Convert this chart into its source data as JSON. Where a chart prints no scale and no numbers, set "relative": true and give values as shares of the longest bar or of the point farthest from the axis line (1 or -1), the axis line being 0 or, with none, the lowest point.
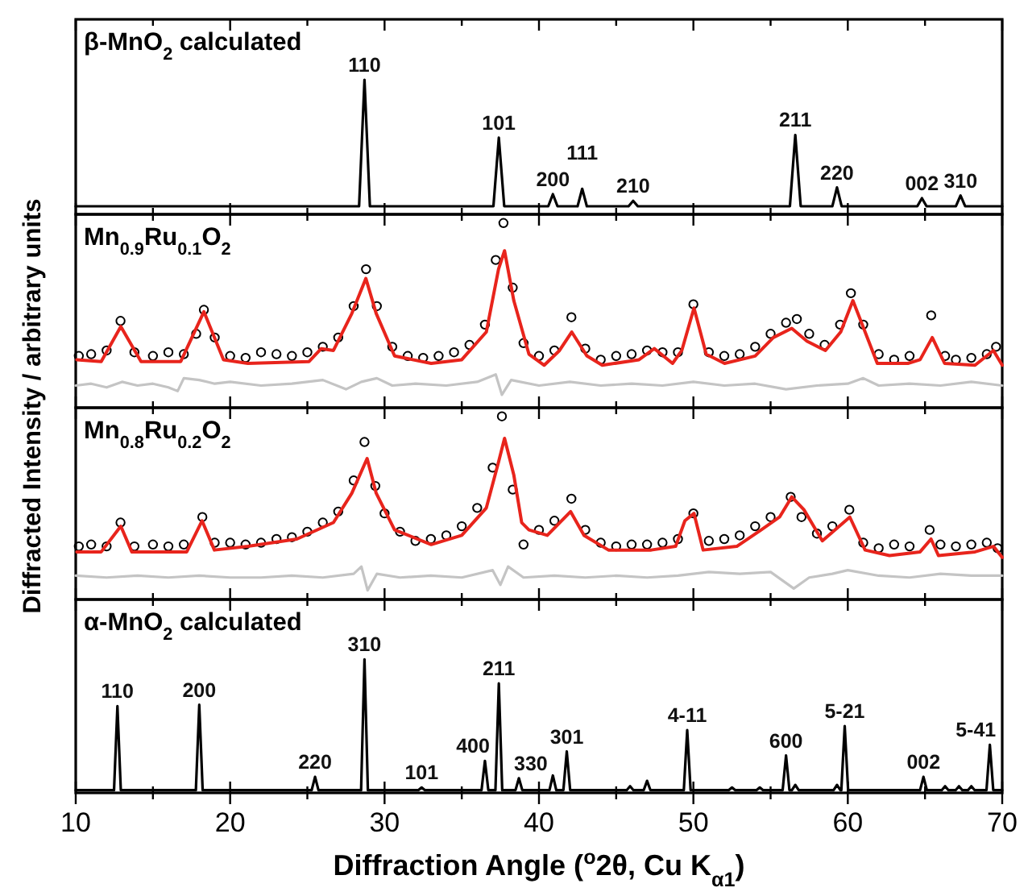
{
  "chart_data": [
    {
      "type": "line",
      "relative": true,
      "title": "β-MnO$_{2}$ calculated",
      "ylabel": "Diffracted Intensity / arbitrary units",
      "xlim": [
        10,
        70
      ],
      "xticks": [
        10,
        {
          "value": 15,
          "label": null
        },
        20,
        {
          "value": 25,
          "label": null
        },
        30,
        {
          "value": 35,
          "label": null
        },
        40,
        {
          "value": 45,
          "label": null
        },
        50,
        {
          "value": 55,
          "label": null
        },
        60,
        {
          "value": 65,
          "label": null
        },
        70
      ],
      "tick_labels": false,
      "series": [
        {
          "color": "#000000",
          "x": [
            10,
            28.35,
            28.7,
            29.05,
            37.05,
            37.4,
            37.75,
            40.6,
            40.9,
            41.2,
            42.5,
            42.8,
            43.1,
            45.8,
            46.1,
            46.4,
            56.25,
            56.6,
            56.95,
            59.0,
            59.3,
            59.6,
            64.5,
            64.8,
            65.1,
            67.0,
            67.3,
            67.6,
            70
          ],
          "values": [
            0.06,
            0.06,
            1,
            0.06,
            0.06,
            0.57,
            0.06,
            0.06,
            0.15,
            0.06,
            0.06,
            0.19,
            0.06,
            0.06,
            0.1,
            0.06,
            0.06,
            0.59,
            0.06,
            0.06,
            0.2,
            0.06,
            0.06,
            0.12,
            0.06,
            0.06,
            0.14,
            0.06,
            0.06
          ]
        }
      ],
      "annotations": [
        {
          "text": "110",
          "x": 28.7,
          "y": 1
        },
        {
          "text": "101",
          "x": 37.4,
          "y": 0.57
        },
        {
          "text": "200",
          "x": 40.9,
          "y": 0.15
        },
        {
          "text": "111",
          "x": 42.8,
          "y": 0.19
        },
        {
          "text": "210",
          "x": 46.1,
          "y": 0.1
        },
        {
          "text": "211",
          "x": 56.6,
          "y": 0.59
        },
        {
          "text": "220",
          "x": 59.3,
          "y": 0.2
        },
        {
          "text": "002",
          "x": 64.8,
          "y": 0.12
        },
        {
          "text": "310",
          "x": 67.3,
          "y": 0.14
        }
      ]
    },
    {
      "type": "line",
      "relative": true,
      "title": "Mn$_{0.9}$Ru$_{0.1}$O$_{2}$",
      "xlim": [
        10,
        70
      ],
      "xticks": [
        10,
        {
          "value": 15,
          "label": null
        },
        20,
        {
          "value": 25,
          "label": null
        },
        30,
        {
          "value": 35,
          "label": null
        },
        40,
        {
          "value": 45,
          "label": null
        },
        50,
        {
          "value": 55,
          "label": null
        },
        60,
        {
          "value": 65,
          "label": null
        },
        70
      ],
      "tick_labels": false,
      "series": [
        {
          "type": "line",
          "color": "#c4c4c4",
          "x": [
            10,
            11,
            12,
            13,
            14,
            15,
            16,
            16.6,
            17,
            18,
            19,
            20,
            22,
            24,
            26,
            27.5,
            28.5,
            29.5,
            30.5,
            32,
            34,
            36,
            37.2,
            37.6,
            38.2,
            40,
            42,
            44,
            46,
            48,
            50,
            52,
            54,
            56,
            58,
            60,
            61,
            62,
            64,
            66,
            68,
            70
          ],
          "values": [
            0.12,
            0.13,
            0.11,
            0.14,
            0.12,
            0.13,
            0.11,
            0.09,
            0.16,
            0.15,
            0.13,
            0.14,
            0.12,
            0.13,
            0.15,
            0.1,
            0.14,
            0.16,
            0.12,
            0.13,
            0.12,
            0.14,
            0.18,
            0.07,
            0.15,
            0.12,
            0.14,
            0.12,
            0.13,
            0.12,
            0.14,
            0.12,
            0.13,
            0.1,
            0.12,
            0.13,
            0.16,
            0.12,
            0.13,
            0.12,
            0.14,
            0.12
          ]
        },
        {
          "type": "scatter",
          "marker": "circle",
          "color": "#000000",
          "x": [
            10.2,
            11,
            12,
            12.9,
            13.8,
            15,
            16,
            17,
            17.8,
            18.3,
            19,
            20,
            21,
            22,
            23,
            24,
            25,
            26,
            27,
            28,
            28.8,
            29.5,
            30.5,
            31.5,
            32.5,
            33.5,
            34.5,
            35.5,
            36.5,
            37.2,
            37.7,
            38.3,
            39,
            40,
            41,
            42.1,
            43,
            44,
            45,
            46,
            47,
            48,
            49,
            50,
            51,
            52,
            53,
            54,
            55,
            56,
            56.7,
            57.5,
            58.5,
            59.5,
            60.2,
            61,
            62,
            63,
            64,
            65.4,
            66.3,
            67,
            68,
            69,
            69.6
          ],
          "values": [
            0.28,
            0.29,
            0.31,
            0.47,
            0.3,
            0.28,
            0.3,
            0.29,
            0.4,
            0.53,
            0.38,
            0.28,
            0.27,
            0.3,
            0.29,
            0.28,
            0.3,
            0.33,
            0.38,
            0.55,
            0.75,
            0.55,
            0.33,
            0.28,
            0.27,
            0.28,
            0.3,
            0.34,
            0.45,
            0.8,
            1,
            0.65,
            0.35,
            0.28,
            0.31,
            0.49,
            0.32,
            0.26,
            0.28,
            0.29,
            0.31,
            0.3,
            0.3,
            0.56,
            0.3,
            0.28,
            0.29,
            0.33,
            0.4,
            0.46,
            0.48,
            0.4,
            0.34,
            0.45,
            0.62,
            0.45,
            0.29,
            0.26,
            0.28,
            0.5,
            0.28,
            0.26,
            0.27,
            0.29,
            0.33
          ]
        },
        {
          "type": "line",
          "color": "#e8241c",
          "x": [
            10.07,
            11.65,
            12.92,
            14.23,
            16.8,
            18.3,
            19.57,
            21.15,
            25.11,
            25.9,
            26.69,
            27.88,
            28.79,
            29.46,
            30.65,
            33.02,
            35,
            36.59,
            37.38,
            37.77,
            38.37,
            39.35,
            40.34,
            41.33,
            42.12,
            43.11,
            44.1,
            46.48,
            47.47,
            48.65,
            49.25,
            50.04,
            50.83,
            52.02,
            54,
            55.18,
            56.37,
            57.36,
            58.55,
            59.54,
            60.33,
            61.12,
            61.91,
            63.89,
            64.68,
            65.47,
            66.27,
            68.24,
            69.43,
            70
          ],
          "values": [
            0.26,
            0.25,
            0.44,
            0.25,
            0.25,
            0.52,
            0.26,
            0.24,
            0.25,
            0.32,
            0.31,
            0.51,
            0.7,
            0.51,
            0.28,
            0.24,
            0.26,
            0.41,
            0.75,
            0.85,
            0.58,
            0.29,
            0.23,
            0.31,
            0.41,
            0.28,
            0.23,
            0.26,
            0.32,
            0.24,
            0.31,
            0.54,
            0.29,
            0.24,
            0.28,
            0.38,
            0.43,
            0.36,
            0.31,
            0.41,
            0.58,
            0.41,
            0.24,
            0.24,
            0.26,
            0.38,
            0.24,
            0.23,
            0.31,
            0.23
          ]
        }
      ]
    },
    {
      "type": "line",
      "relative": true,
      "title": "Mn$_{0.8}$Ru$_{0.2}$O$_{2}$",
      "xlim": [
        10,
        70
      ],
      "xticks": [
        10,
        {
          "value": 15,
          "label": null
        },
        20,
        {
          "value": 25,
          "label": null
        },
        30,
        {
          "value": 35,
          "label": null
        },
        40,
        {
          "value": 45,
          "label": null
        },
        50,
        {
          "value": 55,
          "label": null
        },
        60,
        {
          "value": 65,
          "label": null
        },
        70
      ],
      "tick_labels": false,
      "series": [
        {
          "type": "line",
          "color": "#c4c4c4",
          "x": [
            10,
            12,
            14,
            16,
            18,
            20,
            22,
            24,
            26,
            28,
            28.5,
            28.9,
            29.5,
            31,
            33,
            35,
            37,
            37.5,
            38,
            39,
            41,
            43,
            45,
            47,
            49,
            51,
            53,
            55,
            56.5,
            57.5,
            59,
            60,
            62,
            64,
            66,
            68,
            70
          ],
          "values": [
            0.13,
            0.12,
            0.13,
            0.12,
            0.13,
            0.12,
            0.12,
            0.13,
            0.12,
            0.14,
            0.18,
            0.05,
            0.14,
            0.12,
            0.13,
            0.12,
            0.16,
            0.08,
            0.18,
            0.12,
            0.13,
            0.12,
            0.13,
            0.12,
            0.13,
            0.15,
            0.14,
            0.15,
            0.06,
            0.12,
            0.14,
            0.16,
            0.13,
            0.12,
            0.14,
            0.13,
            0.13
          ]
        },
        {
          "type": "scatter",
          "marker": "circle",
          "color": "#000000",
          "x": [
            10.2,
            11,
            12,
            12.9,
            13.8,
            15,
            16,
            17,
            18.2,
            19,
            20,
            21,
            22,
            23,
            24,
            25,
            26,
            27,
            28,
            28.7,
            29.4,
            30,
            31,
            32,
            33,
            34,
            35,
            36,
            37,
            37.6,
            38.3,
            39,
            40,
            41,
            42.1,
            43,
            44,
            45,
            46,
            47,
            48,
            49,
            50,
            51,
            52,
            53,
            54,
            55,
            56.3,
            57,
            58,
            59,
            60.1,
            61,
            62,
            63,
            64,
            65.3,
            66,
            67,
            68,
            69,
            69.7
          ],
          "values": [
            0.29,
            0.3,
            0.29,
            0.42,
            0.29,
            0.3,
            0.29,
            0.3,
            0.45,
            0.31,
            0.31,
            0.3,
            0.31,
            0.33,
            0.34,
            0.37,
            0.42,
            0.48,
            0.65,
            0.86,
            0.62,
            0.47,
            0.37,
            0.32,
            0.33,
            0.35,
            0.4,
            0.5,
            0.72,
            1,
            0.6,
            0.3,
            0.38,
            0.43,
            0.55,
            0.38,
            0.31,
            0.29,
            0.3,
            0.3,
            0.31,
            0.33,
            0.47,
            0.32,
            0.33,
            0.35,
            0.4,
            0.45,
            0.56,
            0.45,
            0.36,
            0.4,
            0.49,
            0.31,
            0.28,
            0.3,
            0.29,
            0.38,
            0.3,
            0.29,
            0.3,
            0.31,
            0.28
          ]
        },
        {
          "type": "line",
          "color": "#e8241c",
          "x": [
            10.07,
            11.65,
            12.92,
            13.63,
            17.19,
            18.18,
            18.98,
            21.15,
            24.32,
            26.69,
            27.88,
            28.87,
            29.46,
            30.65,
            33.02,
            35,
            36.59,
            37.38,
            37.77,
            38.37,
            38.88,
            39.35,
            40.54,
            42.05,
            42.92,
            44.5,
            47.27,
            48.85,
            49.45,
            50.04,
            50.63,
            52.81,
            54.39,
            55.58,
            56.37,
            57.16,
            58.35,
            60.13,
            61.12,
            62.7,
            64.68,
            65.39,
            65.87,
            68.24,
            69.43,
            70
          ],
          "values": [
            0.26,
            0.26,
            0.4,
            0.26,
            0.26,
            0.43,
            0.27,
            0.29,
            0.33,
            0.42,
            0.58,
            0.77,
            0.58,
            0.38,
            0.3,
            0.35,
            0.5,
            0.75,
            0.88,
            0.68,
            0.42,
            0.38,
            0.35,
            0.48,
            0.35,
            0.27,
            0.27,
            0.29,
            0.43,
            0.47,
            0.27,
            0.29,
            0.38,
            0.45,
            0.56,
            0.49,
            0.32,
            0.45,
            0.27,
            0.24,
            0.26,
            0.33,
            0.24,
            0.26,
            0.29,
            0.23
          ]
        }
      ]
    },
    {
      "type": "line",
      "relative": true,
      "title": "α-MnO$_{2}$ calculated",
      "xlabel": "Diffraction Angle ($^{o}$2θ, Cu K$_{α1}$)",
      "xlim": [
        10,
        70
      ],
      "xticks": [
        10,
        {
          "value": 15,
          "label": null
        },
        20,
        {
          "value": 25,
          "label": null
        },
        30,
        {
          "value": 35,
          "label": null
        },
        40,
        {
          "value": 45,
          "label": null
        },
        50,
        {
          "value": 55,
          "label": null
        },
        60,
        {
          "value": 65,
          "label": null
        },
        70
      ],
      "tick_labels": "x",
      "series": [
        {
          "color": "#000000",
          "x": [
            10,
            12.48,
            12.7,
            12.92,
            17.78,
            18.0,
            18.22,
            25.28,
            25.5,
            25.72,
            28.48,
            28.7,
            28.92,
            32.18,
            32.4,
            32.62,
            36.28,
            36.5,
            36.72,
            37.18,
            37.4,
            37.62,
            38.48,
            38.7,
            38.92,
            40.68,
            40.9,
            41.12,
            41.58,
            41.8,
            42.02,
            45.68,
            45.9,
            46.12,
            46.78,
            47.0,
            47.22,
            49.38,
            49.6,
            49.82,
            52.28,
            52.5,
            52.72,
            54.08,
            54.3,
            54.52,
            55.78,
            56.0,
            56.22,
            56.38,
            56.6,
            56.82,
            59.08,
            59.3,
            59.52,
            59.58,
            59.8,
            60.02,
            64.68,
            64.9,
            65.12,
            66.08,
            66.3,
            66.52,
            66.98,
            67.2,
            67.42,
            67.78,
            68.0,
            68.22,
            68.98,
            69.2,
            69.42,
            70
          ],
          "values": [
            0.02,
            0.02,
            0.65,
            0.02,
            0.02,
            0.66,
            0.02,
            0.02,
            0.12,
            0.02,
            0.02,
            1,
            0.02,
            0.02,
            0.04,
            0.02,
            0.02,
            0.24,
            0.02,
            0.02,
            0.82,
            0.02,
            0.02,
            0.11,
            0.02,
            0.02,
            0.13,
            0.02,
            0.02,
            0.31,
            0.02,
            0.02,
            0.05,
            0.02,
            0.02,
            0.09,
            0.02,
            0.02,
            0.47,
            0.02,
            0.02,
            0.04,
            0.02,
            0.02,
            0.04,
            0.02,
            0.02,
            0.28,
            0.02,
            0.02,
            0.06,
            0.02,
            0.02,
            0.06,
            0.02,
            0.02,
            0.5,
            0.02,
            0.02,
            0.12,
            0.02,
            0.02,
            0.05,
            0.02,
            0.02,
            0.05,
            0.02,
            0.02,
            0.05,
            0.02,
            0.02,
            0.36,
            0.02,
            0.02
          ]
        }
      ],
      "annotations": [
        {
          "text": "110",
          "x": 12.7,
          "y": 0.65
        },
        {
          "text": "200",
          "x": 18.0,
          "y": 0.66
        },
        {
          "text": "220",
          "x": 25.5,
          "y": 0.12
        },
        {
          "text": "310",
          "x": 28.7,
          "y": 1
        },
        {
          "text": "101",
          "x": 32.4,
          "y": 0.04
        },
        {
          "text": "400",
          "x": 36.5,
          "y": 0.24
        },
        {
          "text": "211",
          "x": 37.4,
          "y": 0.82
        },
        {
          "text": "330",
          "x": 38.7,
          "y": 0.11
        },
        {
          "text": "301",
          "x": 41.8,
          "y": 0.31
        },
        {
          "text": "4-11",
          "x": 49.6,
          "y": 0.47
        },
        {
          "text": "600",
          "x": 56.0,
          "y": 0.28
        },
        {
          "text": "5-21",
          "x": 59.8,
          "y": 0.5
        },
        {
          "text": "002",
          "x": 64.9,
          "y": 0.12
        },
        {
          "text": "5-41",
          "x": 69.2,
          "y": 0.36
        }
      ]
    }
  ]
}
